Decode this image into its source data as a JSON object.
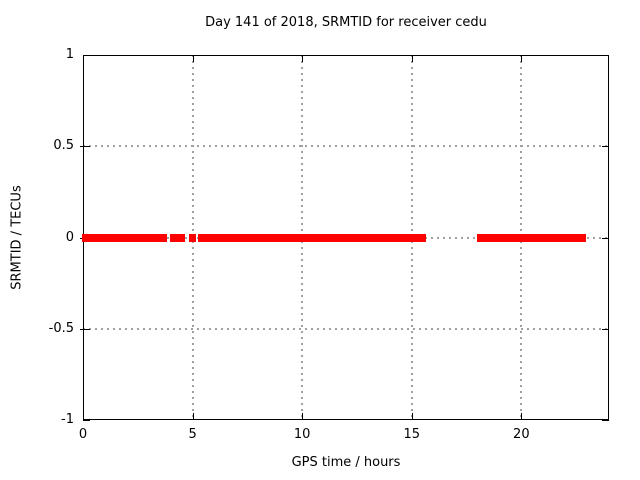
{
  "chart_data": {
    "type": "scatter",
    "title": "Day 141 of 2018, SRMTID for receiver cedu",
    "xlabel": "GPS time / hours",
    "ylabel": "SRMTID / TECUs",
    "xlim": [
      0,
      24
    ],
    "ylim": [
      -1,
      1
    ],
    "xticks": [
      0,
      5,
      10,
      15,
      20
    ],
    "xtick_labels": [
      "0",
      "5",
      "10",
      "15",
      "20"
    ],
    "yticks": [
      1,
      0.5,
      0,
      -0.5,
      -1
    ],
    "ytick_labels": [
      "1",
      "0.5",
      "0",
      "-0.5",
      "-1"
    ],
    "grid": true,
    "legend": false,
    "series": [
      {
        "name": "SRMTID",
        "color": "#ff0000",
        "y_value": 0,
        "x_segments_hours": [
          [
            0.0,
            3.6
          ],
          [
            3.7,
            3.8
          ],
          [
            4.0,
            4.6
          ],
          [
            4.9,
            5.1
          ],
          [
            5.3,
            15.6
          ],
          [
            18.0,
            18.6
          ],
          [
            18.7,
            18.8
          ],
          [
            18.9,
            22.9
          ]
        ]
      }
    ]
  },
  "colors": {
    "data_red": "#ff0000",
    "grid_gray": "#a0a0a0",
    "axis_black": "#000000",
    "background": "#ffffff"
  }
}
